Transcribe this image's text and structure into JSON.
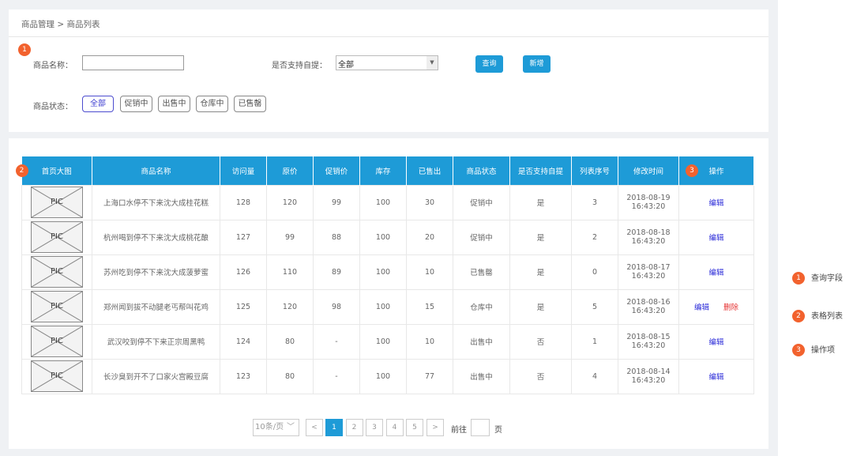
{
  "breadcrumb": {
    "root": "商品管理",
    "separator": ">",
    "current": "商品列表"
  },
  "search": {
    "name_label": "商品名称：",
    "name_value": "",
    "pickup_label": "是否支持自提：",
    "pickup_value": "全部",
    "query_label": "查询",
    "add_label": "新增",
    "status_label": "商品状态：",
    "status_tags": [
      "全部",
      "促销中",
      "出售中",
      "仓库中",
      "已售罄"
    ],
    "active_status": "全部"
  },
  "table": {
    "headers": [
      "首页大图",
      "商品名称",
      "访问量",
      "原价",
      "促销价",
      "库存",
      "已售出",
      "商品状态",
      "是否支持自提",
      "列表序号",
      "修改时间",
      "操作"
    ],
    "pic_label": "PIC",
    "rows": [
      {
        "name": "上海口水停不下来沈大成桂花糕",
        "visits": "128",
        "price": "120",
        "promo": "99",
        "stock": "100",
        "sold": "30",
        "status": "促销中",
        "pickup": "是",
        "order": "3",
        "date": "2018-08-19",
        "time": "16:43:20",
        "actions": [
          "编辑"
        ]
      },
      {
        "name": "杭州喝到停不下来沈大成桃花酿",
        "visits": "127",
        "price": "99",
        "promo": "88",
        "stock": "100",
        "sold": "20",
        "status": "促销中",
        "pickup": "是",
        "order": "2",
        "date": "2018-08-18",
        "time": "16:43:20",
        "actions": [
          "编辑"
        ]
      },
      {
        "name": "苏州吃到停不下来沈大成菠萝蜜",
        "visits": "126",
        "price": "110",
        "promo": "89",
        "stock": "100",
        "sold": "10",
        "status": "已售罄",
        "pickup": "是",
        "order": "0",
        "date": "2018-08-17",
        "time": "16:43:20",
        "actions": [
          "编辑"
        ]
      },
      {
        "name": "郑州闻到拔不动腿老丐帮叫花鸡",
        "visits": "125",
        "price": "120",
        "promo": "98",
        "stock": "100",
        "sold": "15",
        "status": "仓库中",
        "pickup": "是",
        "order": "5",
        "date": "2018-08-16",
        "time": "16:43:20",
        "actions": [
          "编辑",
          "删除"
        ]
      },
      {
        "name": "武汉咬到停不下来正宗周黑鸭",
        "visits": "124",
        "price": "80",
        "promo": "-",
        "stock": "100",
        "sold": "10",
        "status": "出售中",
        "pickup": "否",
        "order": "1",
        "date": "2018-08-15",
        "time": "16:43:20",
        "actions": [
          "编辑"
        ]
      },
      {
        "name": "长沙臭到开不了口家火宫殿豆腐",
        "visits": "123",
        "price": "80",
        "promo": "-",
        "stock": "100",
        "sold": "77",
        "status": "出售中",
        "pickup": "否",
        "order": "4",
        "date": "2018-08-14",
        "time": "16:43:20",
        "actions": [
          "编辑"
        ]
      }
    ]
  },
  "pagination": {
    "page_size": "10条/页",
    "prev": "<",
    "next": ">",
    "pages": [
      "1",
      "2",
      "3",
      "4",
      "5"
    ],
    "current": "1",
    "goto_label": "前往",
    "goto_value": "",
    "page_suffix": "页"
  },
  "annotations": [
    {
      "num": "1",
      "label": "查询字段"
    },
    {
      "num": "2",
      "label": "表格列表"
    },
    {
      "num": "3",
      "label": "操作项"
    }
  ],
  "colors": {
    "primary": "#1e9bd7",
    "badge": "#f2622e",
    "danger": "#e53030",
    "link": "#2a2ad8"
  }
}
